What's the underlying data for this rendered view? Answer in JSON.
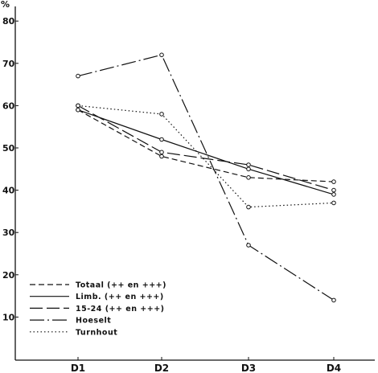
{
  "chart_data": {
    "type": "line",
    "ylabel": "%",
    "ylim": [
      0,
      84
    ],
    "yticks": [
      10,
      20,
      30,
      40,
      50,
      60,
      70,
      80
    ],
    "categories": [
      "D1",
      "D2",
      "D3",
      "D4"
    ],
    "series": [
      {
        "name": "Totaal (++ en +++)",
        "values": [
          59,
          48,
          43,
          42
        ],
        "dash": "dashed"
      },
      {
        "name": "Limb. (++ en +++)",
        "values": [
          59,
          52,
          45,
          39
        ],
        "dash": "solid"
      },
      {
        "name": "15-24 (++ en +++)",
        "values": [
          60,
          49,
          46,
          40
        ],
        "dash": "longdash"
      },
      {
        "name": "Hoeselt",
        "values": [
          67,
          72,
          27,
          14
        ],
        "dash": "dashdot"
      },
      {
        "name": "Turnhout",
        "values": [
          60,
          58,
          36,
          37
        ],
        "dash": "dotted"
      }
    ],
    "legend_position": "bottom-left",
    "grid": false
  }
}
